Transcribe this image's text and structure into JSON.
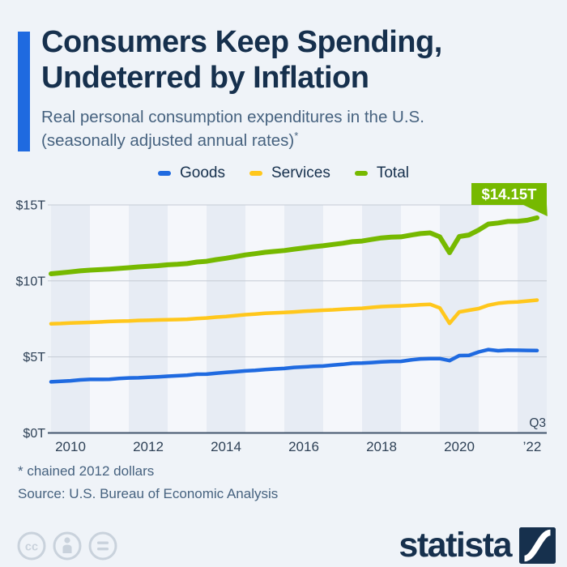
{
  "header": {
    "title_line1": "Consumers Keep Spending,",
    "title_line2": "Undeterred by Inflation",
    "subtitle_line1": "Real personal consumption expenditures in the U.S.",
    "subtitle_line2": "(seasonally adjusted annual rates)",
    "subtitle_footnote_marker": "*",
    "accent_color": "#1f6ae0"
  },
  "chart_data": {
    "type": "line",
    "title": "Real personal consumption expenditures in the U.S. (seasonally adjusted annual rates)",
    "unit": "trillion U.S. dollars",
    "x_values_start": 2010,
    "x_values_interval": "quarterly",
    "ylim": [
      0,
      15
    ],
    "grid": "horizontal",
    "legend_position": "top",
    "y_ticks": [
      {
        "label": "$15T",
        "value": 15
      },
      {
        "label": "$10T",
        "value": 10
      },
      {
        "label": "$5T",
        "value": 5
      },
      {
        "label": "$0T",
        "value": 0
      }
    ],
    "x_ticks": [
      {
        "label": "2010",
        "t": 2010.5
      },
      {
        "label": "2012",
        "t": 2012.5
      },
      {
        "label": "2014",
        "t": 2014.5
      },
      {
        "label": "2016",
        "t": 2016.5
      },
      {
        "label": "2018",
        "t": 2018.5
      },
      {
        "label": "2020",
        "t": 2020.5
      },
      {
        "label": "’22",
        "t": 2022.375
      }
    ],
    "quarter_axis_note": "Q3",
    "end_annotation": {
      "label": "$14.15T",
      "series": "Total",
      "color": "#76b900",
      "text_color": "#ffffff"
    },
    "series": [
      {
        "name": "Goods",
        "color": "#1f6ae0",
        "values": [
          3.36,
          3.4,
          3.43,
          3.49,
          3.52,
          3.52,
          3.53,
          3.58,
          3.62,
          3.63,
          3.66,
          3.69,
          3.73,
          3.76,
          3.8,
          3.86,
          3.87,
          3.93,
          3.98,
          4.03,
          4.08,
          4.12,
          4.17,
          4.21,
          4.24,
          4.31,
          4.34,
          4.38,
          4.4,
          4.46,
          4.51,
          4.58,
          4.59,
          4.63,
          4.67,
          4.7,
          4.71,
          4.8,
          4.87,
          4.89,
          4.89,
          4.76,
          5.09,
          5.1,
          5.33,
          5.48,
          5.41,
          5.45,
          5.44,
          5.43,
          5.42
        ]
      },
      {
        "name": "Services",
        "color": "#ffc71c",
        "values": [
          7.18,
          7.2,
          7.23,
          7.25,
          7.27,
          7.3,
          7.33,
          7.35,
          7.37,
          7.4,
          7.41,
          7.43,
          7.45,
          7.46,
          7.48,
          7.53,
          7.56,
          7.62,
          7.66,
          7.72,
          7.78,
          7.82,
          7.87,
          7.9,
          7.93,
          7.96,
          8.0,
          8.04,
          8.07,
          8.1,
          8.14,
          8.17,
          8.2,
          8.26,
          8.31,
          8.34,
          8.36,
          8.39,
          8.43,
          8.46,
          8.22,
          7.21,
          7.96,
          8.07,
          8.18,
          8.4,
          8.53,
          8.59,
          8.62,
          8.68,
          8.74
        ]
      },
      {
        "name": "Total",
        "color": "#76b900",
        "values": [
          10.47,
          10.53,
          10.59,
          10.66,
          10.71,
          10.74,
          10.78,
          10.82,
          10.87,
          10.92,
          10.96,
          11.0,
          11.06,
          11.09,
          11.14,
          11.24,
          11.29,
          11.4,
          11.49,
          11.6,
          11.71,
          11.79,
          11.88,
          11.94,
          12.0,
          12.09,
          12.17,
          12.25,
          12.31,
          12.4,
          12.48,
          12.58,
          12.62,
          12.73,
          12.83,
          12.88,
          12.9,
          13.01,
          13.11,
          13.16,
          12.9,
          11.86,
          12.92,
          13.02,
          13.35,
          13.74,
          13.81,
          13.91,
          13.92,
          13.99,
          14.15
        ]
      }
    ]
  },
  "footer": {
    "footnote": "* chained 2012 dollars",
    "source": "Source: U.S. Bureau of Economic Analysis",
    "license_icons": [
      "cc-icon",
      "attribution-person-icon",
      "equal-sign-icon"
    ],
    "brand": "statista"
  }
}
